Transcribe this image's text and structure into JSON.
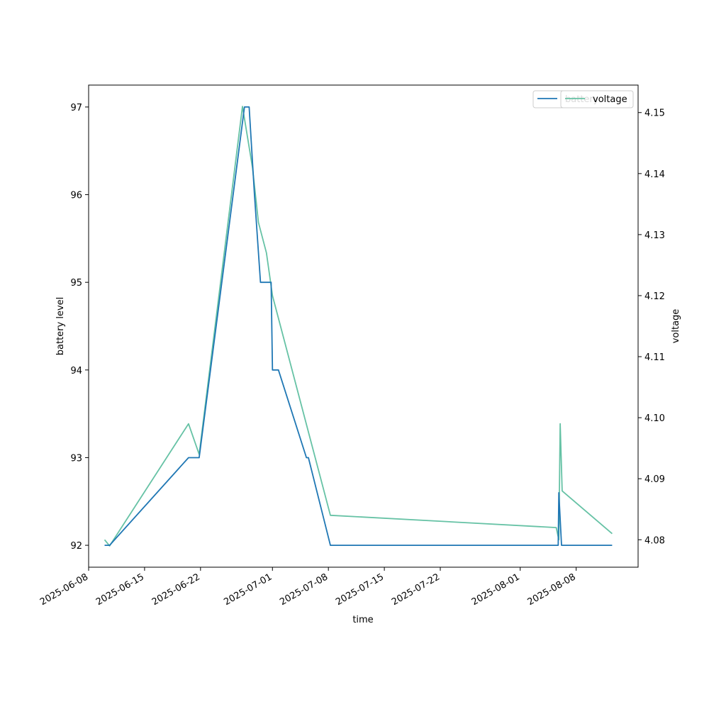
{
  "chart_data": {
    "type": "line",
    "xlabel": "time",
    "ylabel_left": "battery level",
    "ylabel_right": "voltage",
    "x_ticks": [
      "2025-06-08",
      "2025-06-15",
      "2025-06-22",
      "2025-07-01",
      "2025-07-08",
      "2025-07-15",
      "2025-07-22",
      "2025-08-01",
      "2025-08-08"
    ],
    "y_left_ticks": [
      92,
      93,
      94,
      95,
      96,
      97
    ],
    "y_right_ticks": [
      4.08,
      4.09,
      4.1,
      4.11,
      4.12,
      4.13,
      4.14,
      4.15
    ],
    "y_right_tick_labels": [
      "4.08",
      "4.09",
      "4.10",
      "4.11",
      "4.12",
      "4.13",
      "4.14",
      "4.15"
    ],
    "x_range": [
      "2025-06-08T00:00",
      "2025-08-15T18:00"
    ],
    "y_left_range": [
      91.75,
      97.25
    ],
    "y_right_range": [
      4.0755,
      4.1545
    ],
    "grid": false,
    "legend_placement": "top-right",
    "series": [
      {
        "name": "battery",
        "axis": "left",
        "color": "#1f77b4",
        "points": [
          [
            "2025-06-10T00:00",
            92
          ],
          [
            "2025-06-10T15:00",
            92
          ],
          [
            "2025-06-20T12:00",
            93
          ],
          [
            "2025-06-21T20:00",
            93
          ],
          [
            "2025-06-27T12:00",
            97
          ],
          [
            "2025-06-28T02:00",
            97
          ],
          [
            "2025-06-28T18:00",
            96
          ],
          [
            "2025-06-29T12:00",
            95
          ],
          [
            "2025-06-30T20:00",
            95
          ],
          [
            "2025-07-01T00:00",
            94
          ],
          [
            "2025-07-01T18:00",
            94
          ],
          [
            "2025-07-05T06:00",
            93
          ],
          [
            "2025-07-05T12:00",
            93
          ],
          [
            "2025-07-08T06:00",
            92
          ],
          [
            "2025-08-05T18:00",
            92
          ],
          [
            "2025-08-05T20:00",
            92.6
          ],
          [
            "2025-08-06T04:00",
            92
          ],
          [
            "2025-08-12T12:00",
            92
          ]
        ]
      },
      {
        "name": "voltage",
        "axis": "right",
        "color": "#66c2a5",
        "points": [
          [
            "2025-06-10T00:00",
            4.08
          ],
          [
            "2025-06-10T15:00",
            4.079
          ],
          [
            "2025-06-20T12:00",
            4.099
          ],
          [
            "2025-06-21T20:00",
            4.094
          ],
          [
            "2025-06-27T06:00",
            4.151
          ],
          [
            "2025-06-28T12:00",
            4.141
          ],
          [
            "2025-06-29T06:00",
            4.132
          ],
          [
            "2025-06-30T06:00",
            4.127
          ],
          [
            "2025-07-01T00:00",
            4.12
          ],
          [
            "2025-07-08T06:00",
            4.084
          ],
          [
            "2025-08-05T12:00",
            4.082
          ],
          [
            "2025-08-05T20:00",
            4.08
          ],
          [
            "2025-08-06T00:00",
            4.099
          ],
          [
            "2025-08-06T06:00",
            4.088
          ],
          [
            "2025-08-12T12:00",
            4.081
          ]
        ]
      }
    ],
    "legend": [
      {
        "label": "battery",
        "color": "#1f77b4",
        "text_color": "#66c2a5"
      },
      {
        "label": "voltage",
        "color": "#66c2a5",
        "text_color": "#000000"
      }
    ]
  }
}
